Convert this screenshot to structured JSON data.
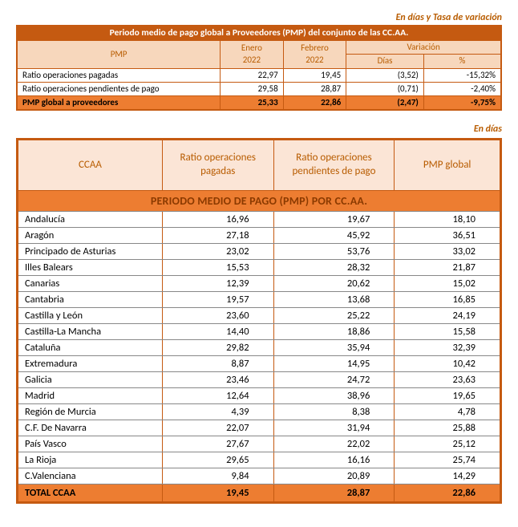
{
  "caption1": "En días y Tasa de variación",
  "caption2": "En días",
  "table1": {
    "title": "Periodo medio de pago global a Proveedores (PMP) del conjunto de las CC.AA.",
    "head_pmp": "PMP",
    "head_enero": "Enero 2022",
    "head_febrero": "Febrero 2022",
    "head_var": "Variación",
    "head_dias": "Días",
    "head_pct": "%",
    "rows": [
      {
        "label": "Ratio operaciones pagadas",
        "enero": "22,97",
        "febrero": "19,45",
        "dias": "(3,52)",
        "pct": "-15,32%"
      },
      {
        "label": "Ratio operaciones pendientes de pago",
        "enero": "29,58",
        "febrero": "28,87",
        "dias": "(0,71)",
        "pct": "-2,40%"
      }
    ],
    "total": {
      "label": "PMP global a proveedores",
      "enero": "25,33",
      "febrero": "22,86",
      "dias": "(2,47)",
      "pct": "-9,75%"
    }
  },
  "table2": {
    "title": "PERIODO MEDIO DE PAGO (PMP) POR CC.AA.",
    "head_ccaa": "CCAA",
    "head_pagadas": "Ratio operaciones pagadas",
    "head_pend": "Ratio operaciones pendientes de pago",
    "head_pmp": "PMP global",
    "rows": [
      {
        "ccaa": "Andalucía",
        "pag": "16,96",
        "pend": "19,67",
        "pmp": "18,10"
      },
      {
        "ccaa": "Aragón",
        "pag": "27,18",
        "pend": "45,92",
        "pmp": "36,51"
      },
      {
        "ccaa": "Principado de Asturias",
        "pag": "23,02",
        "pend": "53,76",
        "pmp": "33,02"
      },
      {
        "ccaa": "Illes Balears",
        "pag": "15,53",
        "pend": "28,32",
        "pmp": "21,87"
      },
      {
        "ccaa": "Canarias",
        "pag": "12,39",
        "pend": "20,62",
        "pmp": "15,02"
      },
      {
        "ccaa": "Cantabria",
        "pag": "19,57",
        "pend": "13,68",
        "pmp": "16,85"
      },
      {
        "ccaa": "Castilla y León",
        "pag": "23,60",
        "pend": "25,22",
        "pmp": "24,19"
      },
      {
        "ccaa": "Castilla-La Mancha",
        "pag": "14,40",
        "pend": "18,86",
        "pmp": "15,58"
      },
      {
        "ccaa": "Cataluña",
        "pag": "29,82",
        "pend": "35,94",
        "pmp": "32,39"
      },
      {
        "ccaa": "Extremadura",
        "pag": "8,87",
        "pend": "14,95",
        "pmp": "10,42"
      },
      {
        "ccaa": "Galicia",
        "pag": "23,46",
        "pend": "24,72",
        "pmp": "23,63"
      },
      {
        "ccaa": "Madrid",
        "pag": "12,64",
        "pend": "38,96",
        "pmp": "19,65"
      },
      {
        "ccaa": "Región de Murcia",
        "pag": "4,39",
        "pend": "8,38",
        "pmp": "4,78"
      },
      {
        "ccaa": "C.F. De Navarra",
        "pag": "22,07",
        "pend": "31,94",
        "pmp": "25,88"
      },
      {
        "ccaa": "País Vasco",
        "pag": "27,67",
        "pend": "22,02",
        "pmp": "25,12"
      },
      {
        "ccaa": "La Rioja",
        "pag": "29,65",
        "pend": "16,16",
        "pmp": "25,74"
      },
      {
        "ccaa": "C.Valenciana",
        "pag": "9,84",
        "pend": "20,89",
        "pmp": "14,29"
      }
    ],
    "total": {
      "ccaa": "TOTAL CCAA",
      "pag": "19,45",
      "pend": "28,87",
      "pmp": "22,86"
    }
  },
  "colors": {
    "accent": "#c55a11",
    "header_bg": "#f7d7bc",
    "highlight": "#ed7d31",
    "soft_bg": "#fbe5d6",
    "text_accent": "#b85c00"
  }
}
